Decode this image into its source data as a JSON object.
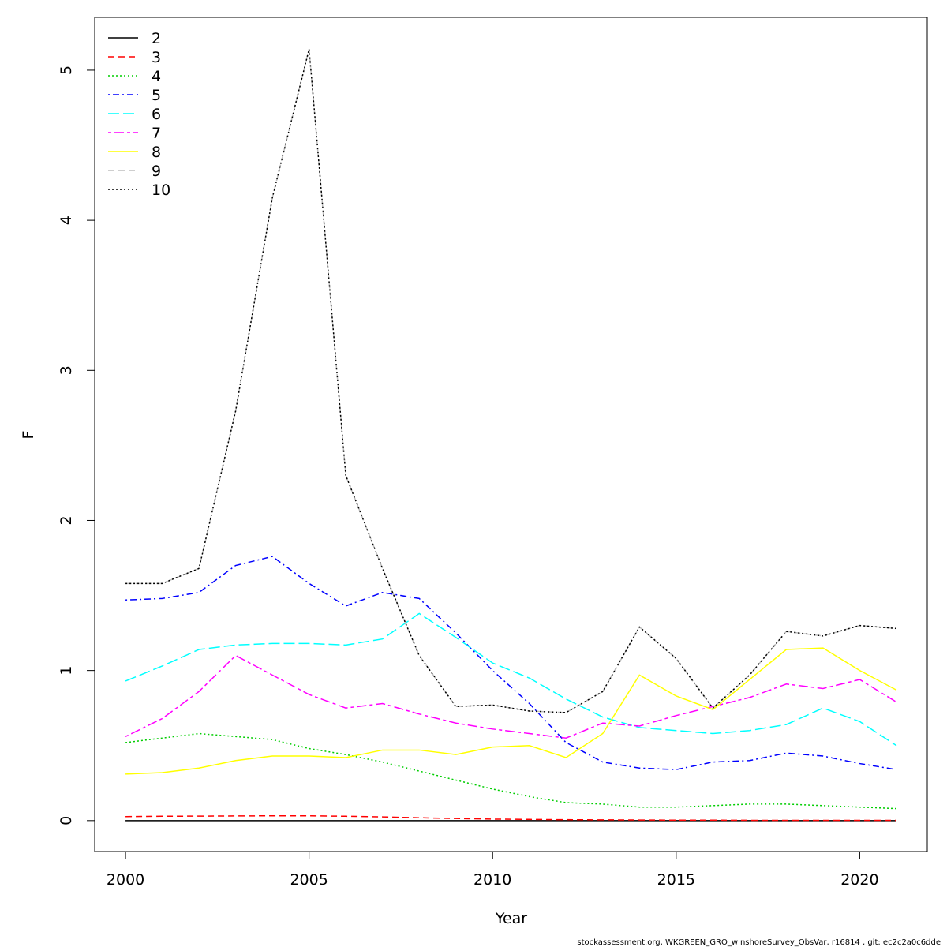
{
  "chart_data": {
    "type": "line",
    "x_label": "Year",
    "y_label": "F",
    "footer": "stockassessment.org, WKGREEN_GRO_wInshoreSurvey_ObsVar, r16814 , git: ec2c2a0c6dde",
    "x": [
      2000,
      2001,
      2002,
      2003,
      2004,
      2005,
      2006,
      2007,
      2008,
      2009,
      2010,
      2011,
      2012,
      2013,
      2014,
      2015,
      2016,
      2017,
      2018,
      2019,
      2020,
      2021
    ],
    "xlim": [
      1999.16,
      2021.84
    ],
    "xticks": [
      2000,
      2005,
      2010,
      2015,
      2020
    ],
    "ylim": [
      -0.206,
      5.352
    ],
    "yticks": [
      0,
      1,
      2,
      3,
      4,
      5
    ],
    "legend": "top-left",
    "series": [
      {
        "name": "2",
        "color": "#000000",
        "dash": "solid",
        "values": [
          0,
          0,
          0,
          0,
          0,
          0,
          0,
          0,
          0,
          0,
          0,
          0,
          0,
          0,
          0,
          0,
          0,
          0,
          0,
          0,
          0,
          0
        ]
      },
      {
        "name": "3",
        "color": "#ff0000",
        "dash": "dashed",
        "values": [
          0.027,
          0.029,
          0.03,
          0.031,
          0.032,
          0.032,
          0.029,
          0.025,
          0.019,
          0.014,
          0.01,
          0.008,
          0.006,
          0.005,
          0.004,
          0.003,
          0.003,
          0.002,
          0.002,
          0.002,
          0.002,
          0.002
        ]
      },
      {
        "name": "4",
        "color": "#00cd00",
        "dash": "dotted",
        "values": [
          0.52,
          0.55,
          0.58,
          0.56,
          0.54,
          0.48,
          0.44,
          0.39,
          0.33,
          0.27,
          0.21,
          0.16,
          0.12,
          0.11,
          0.09,
          0.09,
          0.1,
          0.11,
          0.11,
          0.1,
          0.09,
          0.08
        ]
      },
      {
        "name": "5",
        "color": "#0000ff",
        "dash": "dotdash",
        "values": [
          1.47,
          1.48,
          1.52,
          1.7,
          1.76,
          1.58,
          1.43,
          1.52,
          1.48,
          1.25,
          1.0,
          0.78,
          0.52,
          0.39,
          0.35,
          0.34,
          0.39,
          0.4,
          0.45,
          0.43,
          0.38,
          0.34
        ]
      },
      {
        "name": "6",
        "color": "#00ffff",
        "dash": "longdash",
        "values": [
          0.93,
          1.03,
          1.14,
          1.17,
          1.18,
          1.18,
          1.17,
          1.21,
          1.38,
          1.22,
          1.05,
          0.95,
          0.81,
          0.69,
          0.62,
          0.6,
          0.58,
          0.6,
          0.64,
          0.75,
          0.66,
          0.5
        ]
      },
      {
        "name": "7",
        "color": "#ff00ff",
        "dash": "twodash",
        "values": [
          0.56,
          0.68,
          0.86,
          1.1,
          0.97,
          0.84,
          0.75,
          0.78,
          0.71,
          0.65,
          0.61,
          0.58,
          0.55,
          0.65,
          0.63,
          0.7,
          0.76,
          0.82,
          0.91,
          0.88,
          0.94,
          0.79
        ]
      },
      {
        "name": "8",
        "color": "#ffff00",
        "dash": "solid",
        "values": [
          0.31,
          0.32,
          0.35,
          0.4,
          0.43,
          0.43,
          0.42,
          0.47,
          0.47,
          0.44,
          0.49,
          0.5,
          0.42,
          0.58,
          0.97,
          0.83,
          0.74,
          0.94,
          1.14,
          1.15,
          1.0,
          0.87
        ]
      },
      {
        "name": "9",
        "color": "#bebebe",
        "dash": "dashed",
        "values": [
          1.58,
          1.58,
          1.68,
          2.73,
          4.15,
          5.14,
          2.3,
          1.68,
          1.1,
          0.76,
          0.77,
          0.73,
          0.72,
          0.86,
          1.29,
          1.08,
          0.75,
          0.97,
          1.26,
          1.23,
          1.3,
          1.28
        ]
      },
      {
        "name": "10",
        "color": "#000000",
        "dash": "dotted",
        "values": [
          1.58,
          1.58,
          1.68,
          2.73,
          4.15,
          5.14,
          2.3,
          1.68,
          1.1,
          0.76,
          0.77,
          0.73,
          0.72,
          0.86,
          1.29,
          1.08,
          0.75,
          0.97,
          1.26,
          1.23,
          1.3,
          1.28
        ]
      }
    ]
  }
}
